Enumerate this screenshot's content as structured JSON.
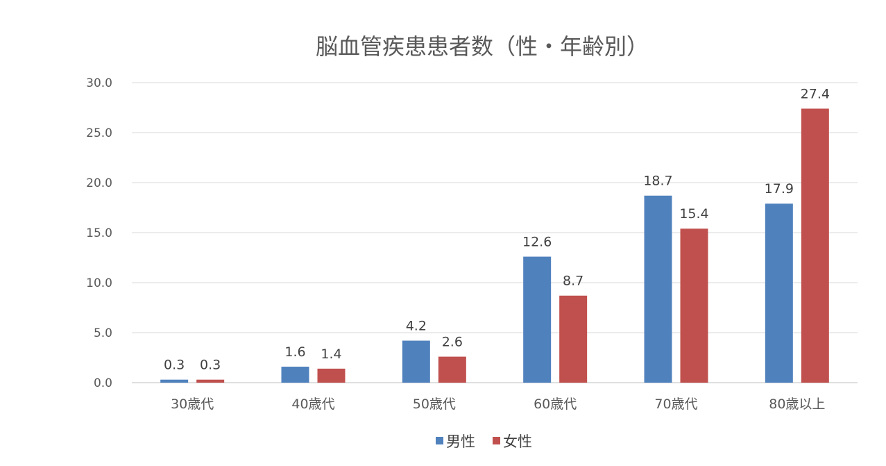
{
  "chart_data": {
    "type": "bar",
    "title": "脳血管疾患患者数（性・年齢別）",
    "xlabel": "",
    "ylabel": "",
    "categories": [
      "30歳代",
      "40歳代",
      "50歳代",
      "60歳代",
      "70歳代",
      "80歳以上"
    ],
    "series": [
      {
        "name": "男性",
        "color": "#4f81bd",
        "values": [
          0.3,
          1.6,
          4.2,
          12.6,
          18.7,
          17.9
        ],
        "labels": [
          "0.3",
          "1.6",
          "4.2",
          "12.6",
          "18.7",
          "17.9"
        ]
      },
      {
        "name": "女性",
        "color": "#c0504d",
        "values": [
          0.3,
          1.4,
          2.6,
          8.7,
          15.4,
          27.4
        ],
        "labels": [
          "0.3",
          "1.4",
          "2.6",
          "8.7",
          "15.4",
          "27.4"
        ]
      }
    ],
    "ylim": [
      0,
      30
    ],
    "yticks": [
      "0.0",
      "5.0",
      "10.0",
      "15.0",
      "20.0",
      "25.0",
      "30.0"
    ],
    "ytick_values": [
      0,
      5,
      10,
      15,
      20,
      25,
      30
    ],
    "grid": true,
    "legend": "bottom"
  }
}
